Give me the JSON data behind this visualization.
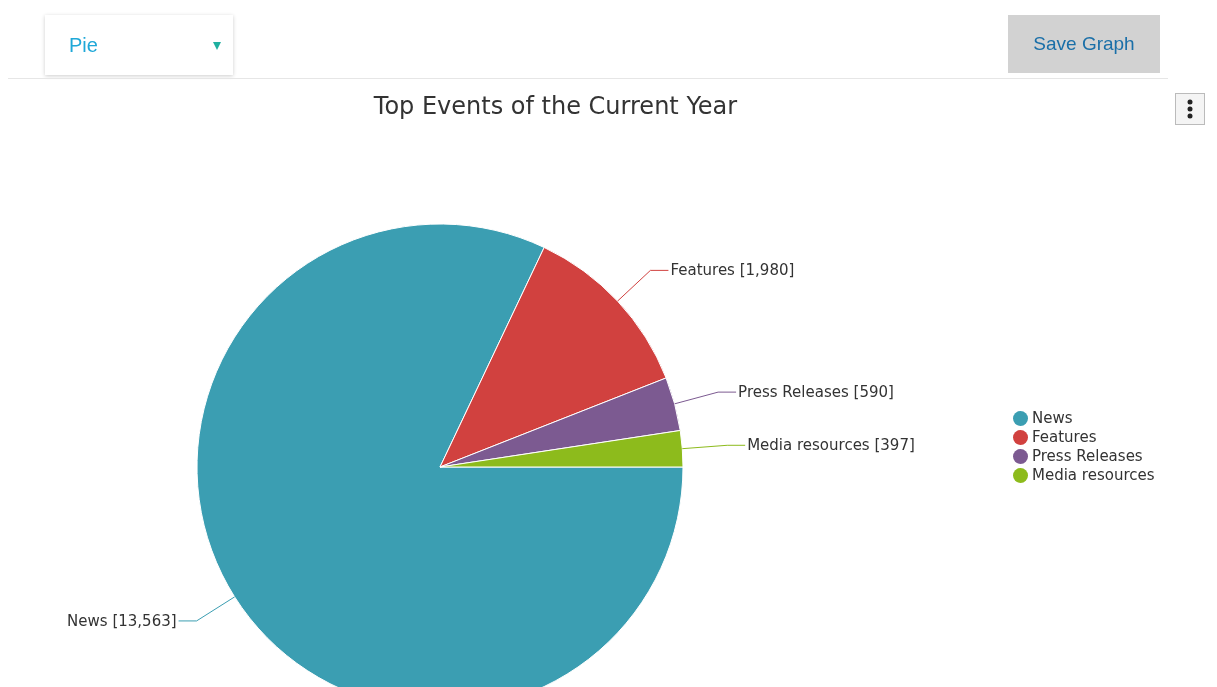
{
  "chart_data": {
    "type": "pie",
    "title": "Top Events of the Current Year",
    "categories": [
      "News",
      "Features",
      "Press Releases",
      "Media resources"
    ],
    "values": [
      13563,
      1980,
      590,
      397
    ],
    "value_labels": [
      "[13,563]",
      "[1,980]",
      "[590]",
      "[397]"
    ],
    "colors": [
      "#3b9eb2",
      "#d1413f",
      "#7c5a91",
      "#8dbb1c"
    ],
    "legend": "right",
    "annotations": [
      "Pie",
      "Save Graph"
    ]
  }
}
